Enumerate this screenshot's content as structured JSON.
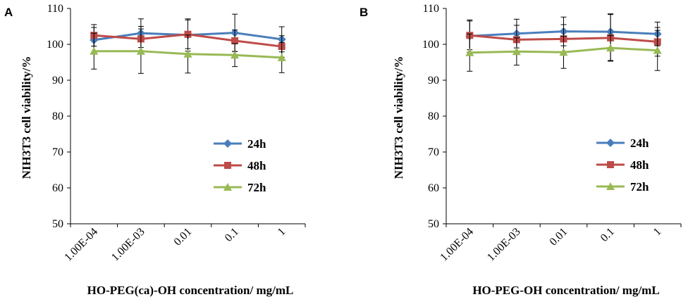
{
  "chart_data": [
    {
      "panel": "A",
      "type": "line",
      "categories": [
        "1.00E-04",
        "1.00E-03",
        "0.01",
        "0.1",
        "1"
      ],
      "xlabel": "HO-PEG(ca)-OH concentration/ mg/mL",
      "ylabel": "NIH3T3 cell viability/%",
      "ylim": [
        50,
        110
      ],
      "yticks": [
        "50",
        "60",
        "70",
        "80",
        "90",
        "100",
        "110"
      ],
      "legend_position": "right-middle",
      "series": [
        {
          "name": "24h",
          "color": "#4a7ebb",
          "marker": "diamond",
          "values": [
            101.2,
            103.1,
            102.6,
            103.2,
            101.4
          ],
          "errors": [
            3.5,
            4.0,
            4.5,
            5.2,
            3.5
          ]
        },
        {
          "name": "48h",
          "color": "#be4b48",
          "marker": "square",
          "values": [
            102.5,
            101.5,
            102.8,
            101.0,
            99.4
          ],
          "errors": [
            3.0,
            3.5,
            4.0,
            3.0,
            3.0
          ]
        },
        {
          "name": "72h",
          "color": "#98b954",
          "marker": "triangle",
          "values": [
            98.1,
            98.1,
            97.3,
            97.0,
            96.3
          ],
          "errors": [
            5.0,
            6.2,
            5.3,
            3.2,
            4.2
          ]
        }
      ]
    },
    {
      "panel": "B",
      "type": "line",
      "categories": [
        "1.00E-04",
        "1.00E-03",
        "0.01",
        "0.1",
        "1"
      ],
      "xlabel": "HO-PEG-OH concentration/ mg/mL",
      "ylabel": "NIH3T3 cell viability/%",
      "ylim": [
        50,
        110
      ],
      "yticks": [
        "50",
        "60",
        "70",
        "80",
        "90",
        "100",
        "110"
      ],
      "legend_position": "right-middle",
      "series": [
        {
          "name": "24h",
          "color": "#4a7ebb",
          "marker": "diamond",
          "values": [
            102.3,
            103.0,
            103.6,
            103.5,
            102.9
          ],
          "errors": [
            4.5,
            4.0,
            4.0,
            5.0,
            3.3
          ]
        },
        {
          "name": "48h",
          "color": "#be4b48",
          "marker": "square",
          "values": [
            102.5,
            101.3,
            101.5,
            101.8,
            100.7
          ],
          "errors": [
            4.0,
            4.0,
            4.0,
            6.5,
            4.0
          ]
        },
        {
          "name": "72h",
          "color": "#98b954",
          "marker": "triangle",
          "values": [
            97.7,
            98.0,
            97.8,
            99.0,
            98.3
          ],
          "errors": [
            5.2,
            3.8,
            4.5,
            3.5,
            5.6
          ]
        }
      ]
    }
  ]
}
